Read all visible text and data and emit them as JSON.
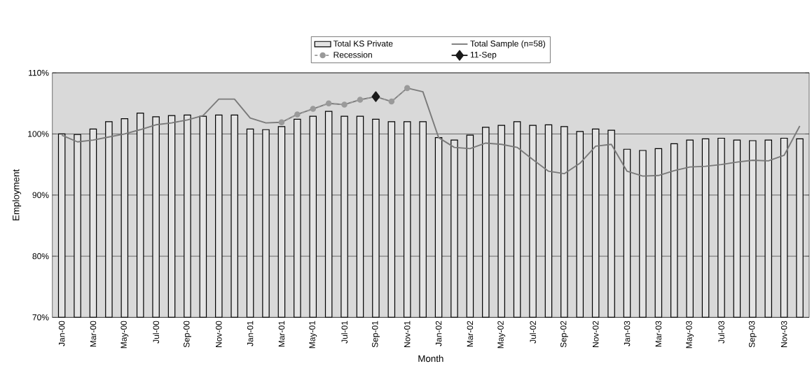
{
  "chart_data": {
    "type": "bar",
    "xlabel": "Month",
    "ylabel": "Employment",
    "categories": [
      "Jan-00",
      null,
      "Mar-00",
      null,
      "May-00",
      null,
      "Jul-00",
      null,
      "Sep-00",
      null,
      "Nov-00",
      null,
      "Jan-01",
      null,
      "Mar-01",
      null,
      "May-01",
      null,
      "Jul-01",
      null,
      "Sep-01",
      null,
      "Nov-01",
      null,
      "Jan-02",
      null,
      "Mar-02",
      null,
      "May-02",
      null,
      "Jul-02",
      null,
      "Sep-02",
      null,
      "Nov-02",
      null,
      "Jan-03",
      null,
      "Mar-03",
      null,
      "May-03",
      null,
      "Jul-03",
      null,
      "Sep-03",
      null,
      "Nov-03",
      null
    ],
    "series": [
      {
        "name": "Total KS Private",
        "color": "#e4e4e4",
        "values": [
          100.0,
          99.9,
          100.8,
          102.0,
          102.5,
          103.4,
          102.8,
          103.0,
          103.1,
          102.9,
          103.1,
          103.1,
          100.8,
          100.7,
          101.2,
          102.4,
          102.9,
          103.7,
          102.9,
          102.9,
          102.4,
          102.0,
          102.0,
          102.0,
          99.4,
          99.0,
          99.8,
          101.1,
          101.4,
          102.0,
          101.4,
          101.5,
          101.2,
          100.4,
          100.8,
          100.6,
          97.5,
          97.3,
          97.6,
          98.4,
          99.0,
          99.2,
          99.3,
          99.0,
          98.9,
          99.0,
          99.3,
          99.2
        ]
      },
      {
        "name": "Total Sample (n=58)",
        "type": "line",
        "color": "#7a7a7a",
        "marker": "none",
        "line_style": "solid",
        "values": [
          99.8,
          98.7,
          99.0,
          99.5,
          100.0,
          100.7,
          101.5,
          101.8,
          102.3,
          103.0,
          105.7,
          105.7,
          102.6,
          101.8,
          101.9,
          103.2,
          104.1,
          105.0,
          104.8,
          105.6,
          106.1,
          105.3,
          107.5,
          106.9,
          99.4,
          97.8,
          97.6,
          98.5,
          98.3,
          97.8,
          95.8,
          93.9,
          93.5,
          95.2,
          98.0,
          98.3,
          93.9,
          93.1,
          93.2,
          94.0,
          94.6,
          94.7,
          95.0,
          95.4,
          95.7,
          95.6,
          96.5,
          101.3
        ]
      },
      {
        "name": "Recession",
        "type": "line",
        "color": "#9a9a9a",
        "marker": "circle",
        "line_style": "dashed",
        "values": [
          null,
          null,
          null,
          null,
          null,
          null,
          null,
          null,
          null,
          null,
          null,
          null,
          null,
          null,
          101.9,
          103.2,
          104.1,
          105.0,
          104.8,
          105.6,
          106.1,
          105.3,
          107.5,
          null,
          null,
          null,
          null,
          null,
          null,
          null,
          null,
          null,
          null,
          null,
          null,
          null,
          null,
          null,
          null,
          null,
          null,
          null,
          null,
          null,
          null,
          null,
          null,
          null
        ]
      },
      {
        "name": "11-Sep",
        "type": "line",
        "color": "#1a1a1a",
        "marker": "diamond",
        "line_style": "solid",
        "values": [
          null,
          null,
          null,
          null,
          null,
          null,
          null,
          null,
          null,
          null,
          null,
          null,
          null,
          null,
          null,
          null,
          null,
          null,
          null,
          null,
          106.1,
          null,
          null,
          null,
          null,
          null,
          null,
          null,
          null,
          null,
          null,
          null,
          null,
          null,
          null,
          null,
          null,
          null,
          null,
          null,
          null,
          null,
          null,
          null,
          null,
          null,
          null,
          null
        ]
      }
    ],
    "ylim": [
      70,
      110
    ],
    "yticks": [
      {
        "value": 70,
        "label": "70%"
      },
      {
        "value": 80,
        "label": "80%"
      },
      {
        "value": 90,
        "label": "90%"
      },
      {
        "value": 100,
        "label": "100%"
      },
      {
        "value": 110,
        "label": "110%"
      }
    ],
    "grid": "y",
    "legend": "top"
  }
}
